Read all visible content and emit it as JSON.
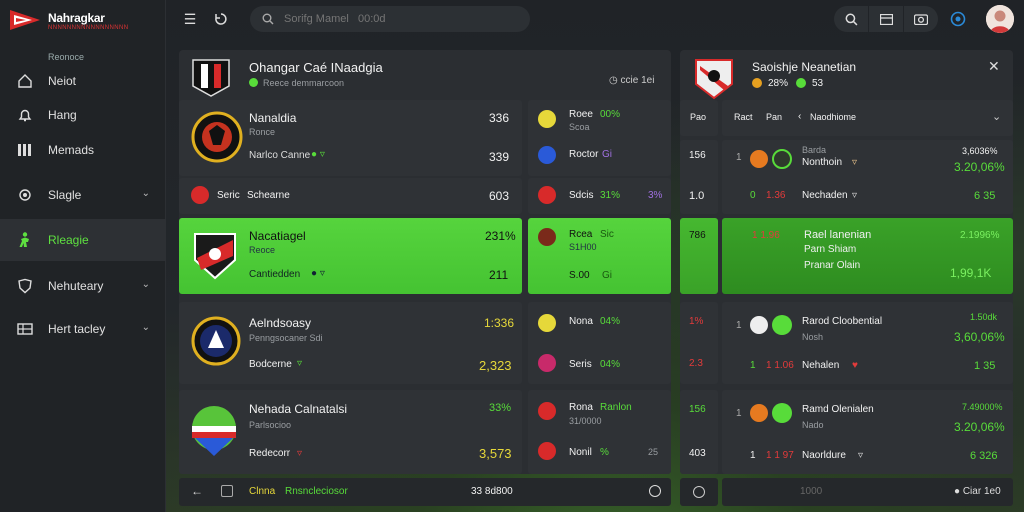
{
  "brand": {
    "name": "Nahragkar",
    "tagline": "NNNNNNNNNNNNNNNNN"
  },
  "sidebar": {
    "section_label": "Reonoce",
    "items": [
      {
        "label": "Neiot",
        "icon": "home-icon"
      },
      {
        "label": "Hang",
        "icon": "bell-icon"
      },
      {
        "label": "Memads",
        "icon": "bars-icon"
      },
      {
        "label": "Slagle",
        "icon": "gear-icon",
        "chevron": true
      },
      {
        "label": "Rleagie",
        "icon": "soccer-player-icon",
        "active": true
      },
      {
        "label": "Nehuteary",
        "icon": "shield-icon",
        "chevron": true
      },
      {
        "label": "Hert tacley",
        "icon": "table-icon",
        "chevron": true
      }
    ]
  },
  "topbar": {
    "search_placeholder": "Sorifg Mamel   00:0d"
  },
  "left_panel": {
    "title": "Ohangar Caé INaadgia",
    "subtitle": "Reece demmarcoon",
    "right_label": "ccie 1ei",
    "rows": [
      {
        "team": "Nanaldia",
        "sub": "Ronce",
        "line2": "Narlco Canne",
        "v1": "336",
        "v2": "339",
        "side": [
          {
            "name": "Roee",
            "pct": "00%",
            "sub": "Scoa"
          },
          {
            "name": "Roctor",
            "pct": "Gi"
          }
        ]
      },
      {
        "team": "Seric",
        "team2": "Schearne",
        "v1": "603",
        "side": [
          {
            "name": "Sdcis",
            "pct": "31%",
            "val": "3%"
          }
        ]
      },
      {
        "team": "Nacatiagel",
        "sub": "Reoce",
        "line2": "Cantiedden",
        "v1": "231%",
        "v2": "211",
        "highlight": true,
        "side": [
          {
            "name": "Rcea",
            "pct": "Sic",
            "sub": "S1H00"
          },
          {
            "name": "S.00",
            "pct": "Gi"
          }
        ]
      },
      {
        "team": "Aelndsoasy",
        "sub": "Penngsocaner Sdi",
        "line2": "Bodcerne",
        "v1": "1:336",
        "v2": "2,323",
        "side": [
          {
            "name": "Nona",
            "pct": "04%"
          },
          {
            "name": "Seris",
            "pct": "04%"
          }
        ]
      },
      {
        "team": "Nehada Calnatalsi",
        "sub": "Parlsocioo",
        "line2": "Redecorr",
        "v1": "33%",
        "v2": "3,573",
        "side": [
          {
            "name": "Rona",
            "pct": "Ranlon",
            "sub": "31/0000"
          },
          {
            "name": "Nonil",
            "pct": "%",
            "val": "25"
          }
        ]
      }
    ],
    "footer_label": "Clnna",
    "footer_label2": "Rnsncleciosor",
    "footer_center": "33 8d800"
  },
  "right_panel": {
    "title": "Saoishje Neanetian",
    "pct": "28%",
    "val": "53",
    "headers": [
      "Pao",
      "Ract",
      "Pan",
      "Naodhiome"
    ],
    "rows": [
      {
        "a": "156",
        "name": "Nonthoin",
        "sub": "Barda",
        "top": "3,6036%",
        "bottom": "3.20,06%",
        "sub2": "0",
        "red": "",
        "green_count": ""
      },
      {
        "a": "1.0",
        "red": "1.36",
        "name": "Nechaden",
        "bottom": "6 35"
      },
      {
        "a": "786",
        "red": "1 1.96",
        "name": "Rael lanenian",
        "name2": "Parn Shiam",
        "name3": "Pranar Olain",
        "top": "2.1996%",
        "bottom": "1,99,1K",
        "highlight": true
      },
      {
        "a": "1%",
        "red": "",
        "name": "Rarod Cloobential",
        "sub": "Nosh",
        "top": "1.50dk",
        "bottom": "3,60,06%"
      },
      {
        "a": "2.3",
        "red": "1 1.06",
        "name": "Nehalen",
        "bottom": "1 35"
      },
      {
        "a": "156",
        "name": "Ramd Olenialen",
        "sub": "Nado",
        "top": "7.49000%",
        "bottom": "3.20,06%"
      },
      {
        "a": "403",
        "red": "1 1 97",
        "name": "Naorldure",
        "bottom": "6 326"
      }
    ],
    "footer_center": "1000",
    "footer_right": "Ciar 1e0"
  },
  "colors": {
    "accent": "#56d43d",
    "red": "#e33b3b",
    "yellow": "#e6d83a"
  }
}
